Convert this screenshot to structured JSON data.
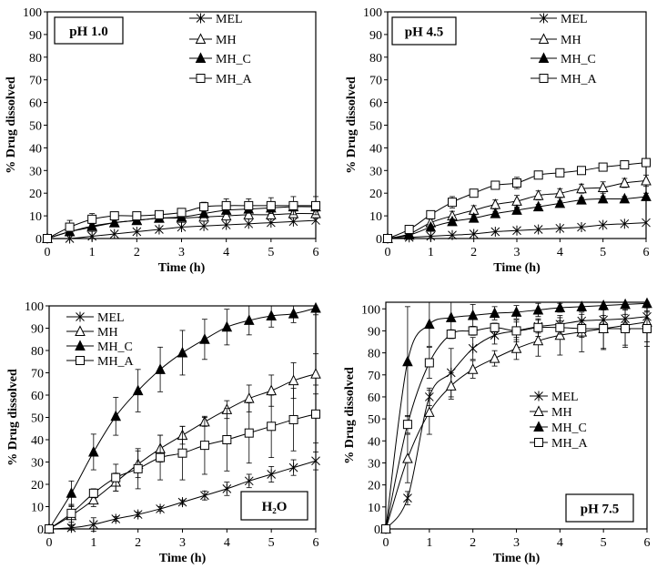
{
  "chart_data": [
    {
      "type": "line",
      "title": "pH 1.0",
      "xlabel": "Time (h)",
      "ylabel": "% Drug dissolved",
      "xlim": [
        0,
        6
      ],
      "ylim": [
        0,
        100
      ],
      "xticks": [
        "0",
        "1",
        "2",
        "3",
        "4",
        "5",
        "6"
      ],
      "yticks": [
        "0",
        "10",
        "20",
        "30",
        "40",
        "50",
        "60",
        "70",
        "80",
        "90",
        "100"
      ],
      "legend_position": "top-right",
      "label_position": "top-left",
      "x": [
        0,
        0.5,
        1,
        1.5,
        2,
        2.5,
        3,
        3.5,
        4,
        4.5,
        5,
        5.5,
        6
      ],
      "series": [
        {
          "name": "MEL",
          "marker": "asterisk",
          "values": [
            0,
            0,
            1,
            2,
            3,
            4,
            5,
            5.5,
            6,
            6.5,
            7,
            7.5,
            8
          ],
          "errors": [
            0,
            0.5,
            0.5,
            0.5,
            0.5,
            0.5,
            0.5,
            0.5,
            0.5,
            0.5,
            0.5,
            0.5,
            0.5
          ]
        },
        {
          "name": "MH",
          "marker": "triangle-open",
          "values": [
            0,
            3,
            5,
            7,
            8,
            9,
            9,
            9.5,
            10,
            10.5,
            10.5,
            11,
            11
          ],
          "errors": [
            0,
            1,
            1,
            1,
            1,
            1,
            1,
            1,
            1,
            1,
            1,
            1,
            1
          ]
        },
        {
          "name": "MH_C",
          "marker": "triangle-filled",
          "values": [
            0,
            3,
            5.5,
            7,
            8,
            9,
            9.5,
            11,
            12.5,
            13,
            13.5,
            14,
            14
          ],
          "errors": [
            0,
            1,
            1,
            1,
            1,
            1,
            1,
            1.5,
            1.5,
            1.5,
            1.5,
            1.5,
            1.5
          ]
        },
        {
          "name": "MH_A",
          "marker": "square-open",
          "values": [
            0,
            5,
            8.5,
            10,
            10,
            10.5,
            11.5,
            14,
            14.5,
            14.5,
            14.5,
            14.5,
            14.5
          ],
          "errors": [
            0,
            3,
            2.5,
            1,
            1,
            1,
            1,
            2,
            3,
            3,
            3.5,
            4,
            4
          ]
        }
      ]
    },
    {
      "type": "line",
      "title": "pH 4.5",
      "xlabel": "Time (h)",
      "ylabel": "% Drug dissolved",
      "xlim": [
        0,
        6
      ],
      "ylim": [
        0,
        100
      ],
      "xticks": [
        "0",
        "1",
        "2",
        "3",
        "4",
        "5",
        "6"
      ],
      "yticks": [
        "0",
        "10",
        "20",
        "30",
        "40",
        "50",
        "60",
        "70",
        "80",
        "90",
        "100"
      ],
      "legend_position": "top-right",
      "label_position": "top-left",
      "x": [
        0,
        0.5,
        1,
        1.5,
        2,
        2.5,
        3,
        3.5,
        4,
        4.5,
        5,
        5.5,
        6
      ],
      "series": [
        {
          "name": "MEL",
          "marker": "asterisk",
          "values": [
            0,
            0.5,
            1,
            1.5,
            2,
            3,
            3.5,
            4,
            4.5,
            5,
            6,
            6.5,
            7
          ],
          "errors": [
            0,
            0.3,
            0.3,
            0.3,
            0.3,
            0.3,
            0.3,
            0.3,
            0.3,
            0.3,
            0.3,
            0.3,
            0.3
          ]
        },
        {
          "name": "MH",
          "marker": "triangle-open",
          "values": [
            0,
            2,
            7,
            10,
            12.5,
            15,
            16.5,
            19,
            20,
            22,
            22.5,
            24.5,
            25.5
          ],
          "errors": [
            0,
            1,
            1.5,
            2,
            2,
            2,
            2.5,
            2,
            2,
            2,
            2.5,
            2,
            2.5
          ]
        },
        {
          "name": "MH_C",
          "marker": "triangle-filled",
          "values": [
            0,
            1.5,
            5,
            7.5,
            9,
            11,
            12.5,
            14,
            15.5,
            17,
            17.5,
            17.5,
            18.5
          ],
          "errors": [
            0,
            0.5,
            1,
            1,
            1,
            1,
            1,
            1,
            1,
            1,
            1,
            1,
            1.5
          ]
        },
        {
          "name": "MH_A",
          "marker": "square-open",
          "values": [
            0,
            4,
            10.5,
            16,
            20,
            23.5,
            24.5,
            28,
            29,
            30,
            31.5,
            32.5,
            33.5
          ],
          "errors": [
            0,
            1.5,
            1,
            2.5,
            1,
            1.5,
            2.5,
            1,
            1,
            1,
            1,
            1,
            1
          ]
        }
      ]
    },
    {
      "type": "line",
      "title": "H₂O",
      "xlabel": "Time (h)",
      "ylabel": "% Drug dissolved",
      "xlim": [
        0,
        6
      ],
      "ylim": [
        0,
        100
      ],
      "xticks": [
        "0",
        "1",
        "2",
        "3",
        "4",
        "5",
        "6"
      ],
      "yticks": [
        "0",
        "10",
        "20",
        "30",
        "40",
        "50",
        "60",
        "70",
        "80",
        "90",
        "100"
      ],
      "legend_position": "top-left",
      "label_position": "bottom-right",
      "x": [
        0,
        0.5,
        1,
        1.5,
        2,
        2.5,
        3,
        3.5,
        4,
        4.5,
        5,
        5.5,
        6
      ],
      "series": [
        {
          "name": "MEL",
          "marker": "asterisk",
          "values": [
            0,
            0.5,
            2,
            4.5,
            6.5,
            9,
            12,
            15,
            18,
            21.5,
            24.5,
            27.5,
            30.5
          ],
          "errors": [
            0,
            1,
            3,
            1,
            1,
            1,
            1,
            2,
            3,
            3,
            3.5,
            3.5,
            4
          ]
        },
        {
          "name": "MH",
          "marker": "triangle-open",
          "values": [
            0,
            6,
            13,
            21,
            29,
            36,
            42,
            48,
            53.5,
            58.5,
            62,
            66.5,
            69.5
          ],
          "errors": [
            0,
            4,
            3,
            4,
            6,
            6,
            4,
            2,
            4,
            6,
            7,
            8,
            9
          ]
        },
        {
          "name": "MH_C",
          "marker": "triangle-filled",
          "values": [
            0,
            16,
            34.5,
            50.5,
            62,
            71.5,
            79,
            85,
            90.5,
            93.5,
            95.5,
            96.5,
            99
          ],
          "errors": [
            0,
            5.5,
            8,
            8.5,
            9.5,
            10,
            10,
            9,
            8,
            6.5,
            5,
            4,
            3
          ]
        },
        {
          "name": "MH_A",
          "marker": "square-open",
          "values": [
            0,
            7,
            16,
            23,
            27,
            32,
            34,
            37.5,
            40,
            43,
            46,
            49,
            51.5
          ],
          "errors": [
            0,
            4,
            2,
            6,
            9,
            10,
            12,
            13,
            14,
            13.5,
            14,
            14,
            13
          ]
        }
      ]
    },
    {
      "type": "line",
      "title": "pH 7.5",
      "xlabel": "Time (h)",
      "ylabel": "% Drug dissolved",
      "xlim": [
        0,
        6
      ],
      "ylim": [
        0,
        103
      ],
      "xticks": [
        "0",
        "1",
        "2",
        "3",
        "4",
        "5",
        "6"
      ],
      "yticks": [
        "0",
        "10",
        "20",
        "30",
        "40",
        "50",
        "60",
        "70",
        "80",
        "90",
        "100"
      ],
      "legend_position": "center-right",
      "label_position": "bottom-right",
      "x": [
        0,
        0.5,
        1,
        1.5,
        2,
        2.5,
        3,
        3.5,
        4,
        4.5,
        5,
        5.5,
        6
      ],
      "series": [
        {
          "name": "MEL",
          "marker": "asterisk",
          "values": [
            0,
            14,
            60,
            71,
            82,
            88,
            90,
            92,
            93,
            94.5,
            95,
            95.5,
            96.5
          ],
          "errors": [
            0,
            3,
            4,
            11,
            5,
            4,
            4,
            3,
            3,
            3,
            2,
            2,
            2
          ]
        },
        {
          "name": "MH",
          "marker": "triangle-open",
          "values": [
            0,
            32,
            53,
            65,
            72.5,
            77.5,
            82,
            85.5,
            88,
            89.5,
            91,
            92.5,
            94
          ],
          "errors": [
            0,
            11,
            10,
            6,
            4,
            3.5,
            5,
            7,
            9,
            9,
            9.5,
            9,
            9
          ]
        },
        {
          "name": "MH_C",
          "marker": "triangle-filled",
          "values": [
            0,
            76,
            93,
            96,
            97,
            98,
            98.5,
            99.5,
            100.5,
            101,
            101.5,
            102,
            102.5
          ],
          "errors": [
            0,
            25,
            10,
            7,
            5,
            3,
            3,
            3,
            2,
            2,
            2,
            2,
            2
          ]
        },
        {
          "name": "MH_A",
          "marker": "square-open",
          "values": [
            0,
            47.5,
            75.5,
            88.5,
            90,
            91.5,
            90,
            91.5,
            91.5,
            91,
            91,
            91,
            91
          ],
          "errors": [
            0,
            4,
            7,
            2,
            2,
            2,
            5,
            4,
            3,
            4,
            9,
            8.5,
            8
          ]
        }
      ]
    }
  ]
}
